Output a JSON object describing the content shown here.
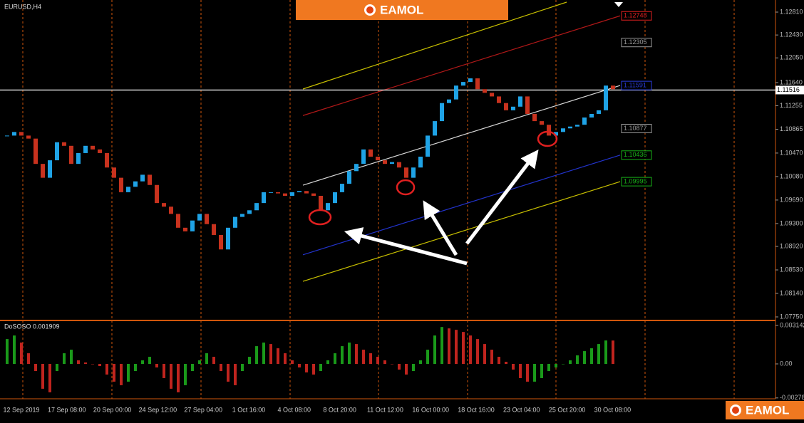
{
  "chart_data": [
    {
      "type": "candlestick",
      "title": "EURUSD,H4",
      "closes": [
        1.1076,
        1.1082,
        1.1076,
        1.1071,
        1.1029,
        1.1006,
        1.1035,
        1.1065,
        1.1059,
        1.1029,
        1.1047,
        1.1059,
        1.1053,
        1.1047,
        1.1023,
        1.1006,
        1.0982,
        1.0991,
        1.1,
        1.1011,
        1.0994,
        1.0964,
        1.0958,
        1.0946,
        1.0923,
        1.0917,
        1.0935,
        1.0946,
        1.0929,
        1.0911,
        1.0887,
        1.0923,
        1.0941,
        1.0946,
        1.0952,
        1.0964,
        1.0982,
        1.0982,
        1.098,
        1.0976,
        1.0982,
        1.0984,
        1.098,
        1.0976,
        1.0952,
        1.0964,
        1.0982,
        1.0996,
        1.1017,
        1.1029,
        1.1053,
        1.1041,
        1.1035,
        1.1029,
        1.1032,
        1.1023,
        1.1006,
        1.1023,
        1.1041,
        1.1076,
        1.11,
        1.113,
        1.1136,
        1.1159,
        1.1165,
        1.1171,
        1.1153,
        1.1147,
        1.1141,
        1.113,
        1.1118,
        1.1124,
        1.1141,
        1.1112,
        1.11,
        1.1094,
        1.1076,
        1.1082,
        1.1088,
        1.1091,
        1.1094,
        1.1106,
        1.1112,
        1.1118,
        1.1159,
        1.1153
      ],
      "up_color": "#1fa3e6",
      "down_color": "#c8321e",
      "ylim": [
        1.0775,
        1.1281
      ],
      "yticks": [
        {
          "value": 1.1281,
          "label": "1.12810"
        },
        {
          "value": 1.1243,
          "label": "1.12430"
        },
        {
          "value": 1.1205,
          "label": "1.12050"
        },
        {
          "value": 1.1164,
          "label": "1.11640"
        },
        1.11255,
        1.10865,
        {
          "value": 1.1047,
          "label": "1.10470"
        },
        {
          "value": 1.1008,
          "label": "1.10080"
        },
        {
          "value": 1.0969,
          "label": "1.09690"
        },
        {
          "value": 1.093,
          "label": "1.09300"
        },
        {
          "value": 1.0892,
          "label": "1.08920"
        },
        {
          "value": 1.0853,
          "label": "1.08530"
        },
        {
          "value": 1.0814,
          "label": "1.08140"
        },
        {
          "value": 1.0775,
          "label": "1.07750"
        }
      ],
      "levels": [
        {
          "value": 1.12748,
          "color": "#e02020",
          "line_color": "#b01818"
        },
        {
          "value": 1.12305,
          "color": "#9a9a9a"
        },
        {
          "value": 1.11591,
          "color": "#2a3de0",
          "line_color": "#d8d8d8"
        },
        {
          "value": 1.10877,
          "color": "#9a9a9a"
        },
        {
          "value": 1.10436,
          "color": "#18b018",
          "line_color": "#2233cc"
        },
        {
          "value": 1.09995,
          "color": "#18b018",
          "line_color": "#c8c000"
        }
      ],
      "current_price": 1.11516,
      "xticks": [
        "12 Sep 2019",
        "17 Sep 08:00",
        "20 Sep 00:00",
        "24 Sep 12:00",
        "27 Sep 04:00",
        "1 Oct 16:00",
        "4 Oct 08:00",
        "8 Oct 20:00",
        "11 Oct 12:00",
        "16 Oct 00:00",
        "18 Oct 16:00",
        "23 Oct 04:00",
        "25 Oct 20:00",
        "30 Oct 08:00"
      ]
    },
    {
      "type": "oscillator",
      "title": "DoSOSO 0.001909",
      "values": [
        0.00203,
        0.00232,
        0.00174,
        0.00087,
        -0.00058,
        -0.00203,
        -0.00232,
        -0.00058,
        0.00087,
        0.00116,
        0.00029,
        0.000116,
        0,
        -0.000174,
        -0.00087,
        -0.00145,
        -0.00174,
        -0.00145,
        -0.00058,
        0.00029,
        0.00058,
        -0.00029,
        -0.00116,
        -0.00203,
        -0.00232,
        -0.00174,
        -0.00058,
        0.00029,
        0.00087,
        0.00058,
        -0.00058,
        -0.00145,
        -0.00174,
        -0.00058,
        0.00058,
        0.00145,
        0.00174,
        0.001624,
        0.001276,
        0.00087,
        0.00029,
        -0.00029,
        -0.000696,
        -0.00087,
        -0.00058,
        0.00029,
        0.00087,
        0.00145,
        0.00174,
        0.001624,
        0.00116,
        0.00087,
        0.00058,
        0.00029,
        0,
        -0.000464,
        -0.00087,
        -0.00058,
        0.00029,
        0.00116,
        0.00232,
        0.003016,
        0.0029,
        0.002784,
        0.00261,
        0.00232,
        0.00203,
        0.001624,
        0.00116,
        0.00058,
        0.000174,
        -0.000464,
        -0.00116,
        -0.00145,
        -0.00145,
        -0.00116,
        -0.00058,
        -0.00029,
        0,
        0.00029,
        0.000696,
        0.001044,
        0.001276,
        0.001624,
        0.001914,
        0.001909
      ],
      "up_color": "#1a9a1a",
      "down_color": "#c0241e",
      "ylim": [
        -0.00278,
        0.003142
      ],
      "yticks": [
        0.003142,
        {
          "value": 0,
          "label": "0.00"
        },
        -0.00278
      ]
    }
  ],
  "logo": "EAMOL"
}
